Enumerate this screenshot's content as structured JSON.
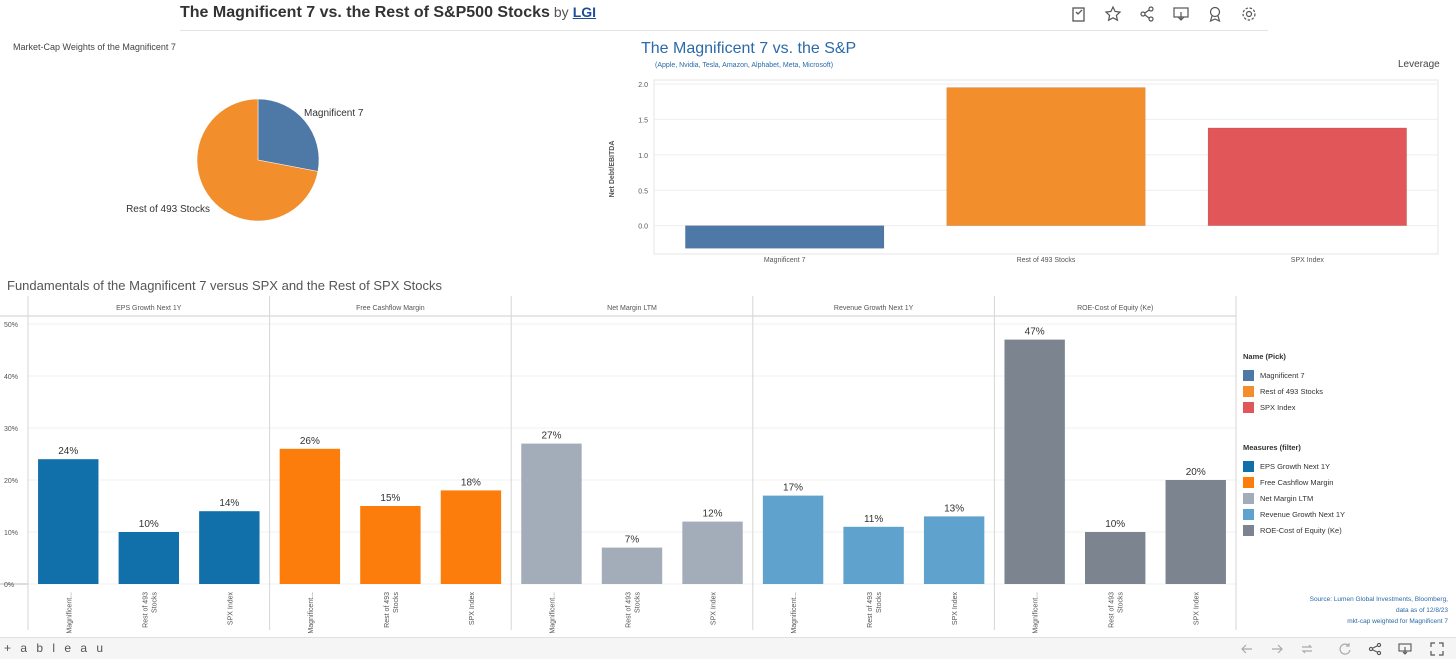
{
  "header": {
    "title": "The Magnificent 7 vs. the Rest of S&P500 Stocks",
    "by": "by",
    "author": "LGI",
    "tools": [
      "annotate-icon",
      "favorite-star-icon",
      "share-icon",
      "download-icon",
      "badge-icon",
      "settings-gear-icon"
    ]
  },
  "pie_section": {
    "title": "Market-Cap Weights of the Magnificent 7"
  },
  "leverage_section": {
    "title": "The Magnificent 7 vs. the S&P",
    "subtitle": "(Apple, Nvidia, Tesla, Amazon, Alphabet, Meta, Microsoft)",
    "leverage_label": "Leverage"
  },
  "fundamentals_section": {
    "title": "Fundamentals of the Magnificent 7 versus SPX and the Rest of SPX Stocks"
  },
  "legend": {
    "name_title": "Name (Pick)",
    "names": [
      {
        "label": "Magnificent 7",
        "color": "#4e79a7"
      },
      {
        "label": "Rest of 493 Stocks",
        "color": "#f28e2b"
      },
      {
        "label": "SPX Index",
        "color": "#e15759"
      }
    ],
    "measures_title": "Measures (filter)",
    "measures": [
      {
        "label": "EPS Growth Next 1Y",
        "color": "#1170aa"
      },
      {
        "label": "Free Cashflow Margin",
        "color": "#fc7d0b"
      },
      {
        "label": "Net Margin LTM",
        "color": "#a3acb9"
      },
      {
        "label": "Revenue Growth Next 1Y",
        "color": "#5fa2ce"
      },
      {
        "label": "ROE-Cost of Equity (Ke)",
        "color": "#7b848f"
      }
    ]
  },
  "source": {
    "line1": "Source: Lumen Global Investments, Bloomberg,",
    "line2": "data as of 12/8/23",
    "line3": "mkt-cap weighted for Magnificent 7"
  },
  "footer": {
    "logo": "+ a b l e a u",
    "tools": [
      "undo-icon",
      "redo-icon",
      "revert-icon",
      "refresh-icon",
      "share-icon",
      "download-icon",
      "fullscreen-icon"
    ]
  },
  "chart_data": [
    {
      "type": "pie",
      "title": "Market-Cap Weights of the Magnificent 7",
      "categories": [
        "Magnificent 7",
        "Rest of 493 Stocks"
      ],
      "values": [
        28,
        72
      ],
      "colors": [
        "#4e79a7",
        "#f28e2b"
      ]
    },
    {
      "type": "bar",
      "title": "The Magnificent 7 vs. the S&P",
      "subtitle": "(Apple, Nvidia, Tesla, Amazon, Alphabet, Meta, Microsoft)",
      "categories": [
        "Magnificent 7",
        "Rest of 493 Stocks",
        "SPX Index"
      ],
      "values": [
        -0.32,
        1.95,
        1.38
      ],
      "colors": [
        "#4e79a7",
        "#f28e2b",
        "#e15759"
      ],
      "ylabel": "Net Debt/EBITDA",
      "yticks": [
        "0.0",
        "0.5",
        "1.0",
        "1.5",
        "2.0"
      ],
      "ylim": [
        -0.4,
        2.0
      ],
      "grid": true
    },
    {
      "type": "bar",
      "title": "Fundamentals of the Magnificent 7 versus SPX and the Rest of SPX Stocks",
      "categories": [
        "Magnificent...",
        "Rest of 493 Stocks",
        "SPX Index"
      ],
      "yticks": [
        "0%",
        "10%",
        "20%",
        "30%",
        "40%",
        "50%"
      ],
      "ylim": [
        0,
        50
      ],
      "series": [
        {
          "name": "EPS Growth Next 1Y",
          "values": [
            24,
            10,
            14
          ],
          "labels": [
            "24%",
            "10%",
            "14%"
          ],
          "color": "#1170aa"
        },
        {
          "name": "Free Cashflow Margin",
          "values": [
            26,
            15,
            18
          ],
          "labels": [
            "26%",
            "15%",
            "18%"
          ],
          "color": "#fc7d0b"
        },
        {
          "name": "Net Margin LTM",
          "values": [
            27,
            7,
            12
          ],
          "labels": [
            "27%",
            "7%",
            "12%"
          ],
          "color": "#a3acb9"
        },
        {
          "name": "Revenue Growth Next 1Y",
          "values": [
            17,
            11,
            13
          ],
          "labels": [
            "17%",
            "11%",
            "13%"
          ],
          "color": "#5fa2ce"
        },
        {
          "name": "ROE-Cost of Equity (Ke)",
          "values": [
            47,
            10,
            20
          ],
          "labels": [
            "47%",
            "10%",
            "20%"
          ],
          "color": "#7b848f"
        }
      ],
      "grid": true
    }
  ]
}
